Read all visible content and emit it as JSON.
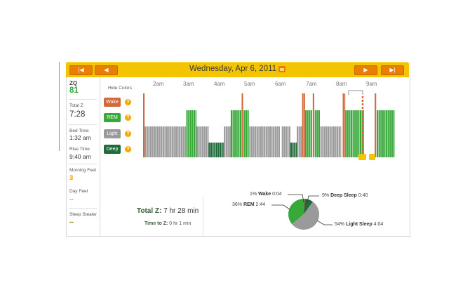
{
  "header": {
    "date_title": "Wednesday, Apr 6, 2011",
    "prev_week_symbol": "|◀",
    "prev_day_symbol": "◀",
    "next_day_symbol": "▶",
    "next_week_symbol": "▶|",
    "accent_color": "#f3c500",
    "button_color": "#ea7e00"
  },
  "sidebar": {
    "zq_label": "ZQ",
    "zq_value": "81",
    "total_z_label": "Total Z",
    "total_z_value": "7:28",
    "bed_time_label": "Bed Time",
    "bed_time_value": "1:32 am",
    "rise_time_label": "Rise Time",
    "rise_time_value": "9:40 am",
    "morning_feel_label": "Morning Feel",
    "morning_feel_value": "3",
    "day_feel_label": "Day Feel",
    "day_feel_value": "--",
    "sleep_stealer_label": "Sleep Stealer",
    "sleep_stealer_value": "--"
  },
  "legend": {
    "hide_colors": "Hide Colors",
    "wake": "Wake",
    "rem": "REM",
    "light": "Light",
    "deep": "Deep",
    "help_symbol": "?",
    "colors": {
      "wake": "#d2693a",
      "rem": "#38a83a",
      "light": "#9a9a9a",
      "deep": "#1f6b3a"
    }
  },
  "chart_data": {
    "type": "bar",
    "title": "",
    "time_ticks": [
      "2am",
      "3am",
      "4am",
      "5am",
      "6am",
      "7am",
      "8am",
      "9am"
    ],
    "stage_levels": {
      "Wake": 4,
      "REM": 3,
      "Light": 2,
      "Deep": 1
    },
    "start_time": "1:32 am",
    "end_time": "9:40 am",
    "segments": [
      {
        "stage": "Wake",
        "start": 0.0,
        "end": 0.006
      },
      {
        "stage": "Light",
        "start": 0.006,
        "end": 0.048
      },
      {
        "stage": "Light",
        "start": 0.048,
        "end": 0.17
      },
      {
        "stage": "REM",
        "start": 0.17,
        "end": 0.21
      },
      {
        "stage": "Light",
        "start": 0.21,
        "end": 0.258
      },
      {
        "stage": "Deep",
        "start": 0.258,
        "end": 0.318
      },
      {
        "stage": "Light",
        "start": 0.318,
        "end": 0.345
      },
      {
        "stage": "REM",
        "start": 0.345,
        "end": 0.388
      },
      {
        "stage": "Wake",
        "start": 0.388,
        "end": 0.396
      },
      {
        "stage": "REM",
        "start": 0.396,
        "end": 0.418
      },
      {
        "stage": "Light",
        "start": 0.418,
        "end": 0.54
      },
      {
        "stage": "Light",
        "start": 0.546,
        "end": 0.58
      },
      {
        "stage": "Deep",
        "start": 0.58,
        "end": 0.605
      },
      {
        "stage": "Light",
        "start": 0.605,
        "end": 0.626
      },
      {
        "stage": "Wake",
        "start": 0.626,
        "end": 0.638
      },
      {
        "stage": "REM",
        "start": 0.638,
        "end": 0.668
      },
      {
        "stage": "Wake",
        "start": 0.668,
        "end": 0.676
      },
      {
        "stage": "REM",
        "start": 0.676,
        "end": 0.698
      },
      {
        "stage": "Light",
        "start": 0.698,
        "end": 0.78
      },
      {
        "stage": "Wake",
        "start": 0.786,
        "end": 0.796
      },
      {
        "stage": "REM",
        "start": 0.796,
        "end": 0.87
      },
      {
        "stage": "Wake",
        "start": 0.912,
        "end": 0.92
      },
      {
        "stage": "REM",
        "start": 0.92,
        "end": 0.99
      }
    ]
  },
  "summary": {
    "total_z_label": "Total Z:",
    "total_z_value": "7 hr 28 min",
    "time_to_z_label": "Time to Z:",
    "time_to_z_value": "0 hr 1 min"
  },
  "pie": {
    "slices": [
      {
        "stage": "Wake",
        "percent": 1,
        "time": "0:04",
        "color": "#d2693a"
      },
      {
        "stage": "Deep Sleep",
        "percent": 9,
        "time": "0:40",
        "color": "#1f6b3a"
      },
      {
        "stage": "Light Sleep",
        "percent": 54,
        "time": "4:04",
        "color": "#9a9a9a"
      },
      {
        "stage": "REM",
        "percent": 36,
        "time": "2:44",
        "color": "#38a83a"
      }
    ],
    "labels": {
      "wake_pct": "1%",
      "wake_name": "Wake",
      "wake_time": "0:04",
      "deep_pct": "9%",
      "deep_name": "Deep Sleep",
      "deep_time": "0:40",
      "rem_pct": "36%",
      "rem_name": "REM",
      "rem_time": "2:44",
      "light_pct": "54%",
      "light_name": "Light Sleep",
      "light_time": "4:04"
    }
  }
}
